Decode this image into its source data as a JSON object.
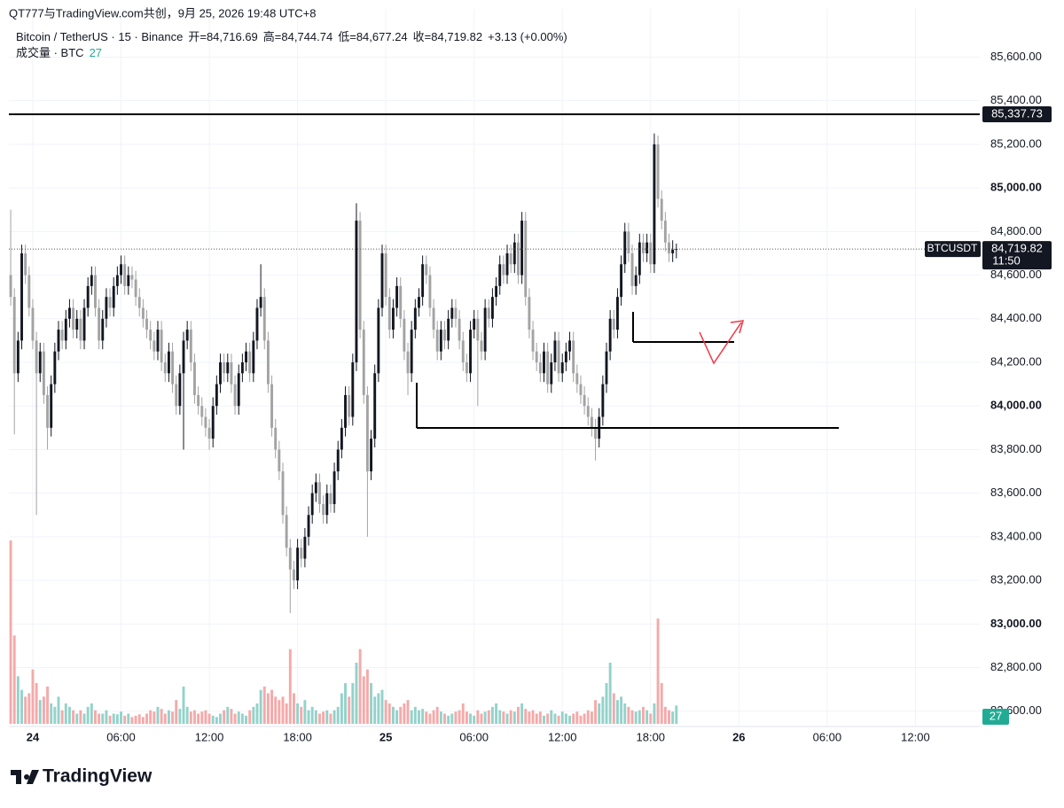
{
  "chart_data": {
    "type": "candlestick",
    "header": "QT777与TradingView.com共创，9月 25, 2026 19:48 UTC+8",
    "title": "Bitcoin / TetherUS · 15 · Binance",
    "legend_items": [
      "开=84,716.69",
      "高=84,744.74",
      "低=84,677.24",
      "收=84,719.82",
      "+3.13 (+0.00%)"
    ],
    "volume_title": "成交量 · BTC",
    "logo": "TradingView",
    "up_color": "#131722",
    "down_color": "#a3a3a3",
    "volume_up_color": "#93d2ca",
    "volume_down_color": "#f5a9a9",
    "ylim": [
      82530,
      85740
    ],
    "yticks": [
      {
        "value": 82600,
        "label": "82,600.00"
      },
      {
        "value": 82800,
        "label": "82,800.00"
      },
      {
        "value": 83000,
        "label": "83,000.00",
        "bold": true
      },
      {
        "value": 83200,
        "label": "83,200.00"
      },
      {
        "value": 83400,
        "label": "83,400.00"
      },
      {
        "value": 83600,
        "label": "83,600.00"
      },
      {
        "value": 83800,
        "label": "83,800.00"
      },
      {
        "value": 84000,
        "label": "84,000.00",
        "bold": true
      },
      {
        "value": 84200,
        "label": "84,200.00"
      },
      {
        "value": 84400,
        "label": "84,400.00"
      },
      {
        "value": 84600,
        "label": "84,600.00"
      },
      {
        "value": 84800,
        "label": "84,800.00"
      },
      {
        "value": 85000,
        "label": "85,000.00",
        "bold": true
      },
      {
        "value": 85200,
        "label": "85,200.00"
      },
      {
        "value": 85400,
        "label": "85,400.00"
      },
      {
        "value": 85600,
        "label": "85,600.00"
      }
    ],
    "xlim": [
      -0.5,
      263.5
    ],
    "xticks": [
      {
        "value": 6,
        "label": "24",
        "bold": true
      },
      {
        "value": 30,
        "label": "06:00"
      },
      {
        "value": 54,
        "label": "12:00"
      },
      {
        "value": 78,
        "label": "18:00"
      },
      {
        "value": 102,
        "label": "25",
        "bold": true
      },
      {
        "value": 126,
        "label": "06:00"
      },
      {
        "value": 150,
        "label": "12:00"
      },
      {
        "value": 174,
        "label": "18:00"
      },
      {
        "value": 198,
        "label": "26",
        "bold": true
      },
      {
        "value": 222,
        "label": "06:00"
      },
      {
        "value": 246,
        "label": "12:00"
      }
    ],
    "hline": {
      "value": 85337.73,
      "label": "85,337.73"
    },
    "last_price": {
      "symbol": "BTCUSDT",
      "label": "84,719.82",
      "countdown": "11:50"
    },
    "volume_ylim": [
      0,
      300
    ],
    "open": [
      84600,
      84500,
      84150,
      84300,
      84700,
      84600,
      84450,
      84300,
      84150,
      84250,
      84050,
      83900,
      84100,
      84250,
      84350,
      84300,
      84400,
      84450,
      84350,
      84400,
      84300,
      84450,
      84550,
      84600,
      84450,
      84300,
      84400,
      84500,
      84450,
      84550,
      84600,
      84650,
      84550,
      84600,
      84580,
      84500,
      84450,
      84400,
      84350,
      84300,
      84250,
      84350,
      84200,
      84150,
      84250,
      84100,
      84000,
      84150,
      84300,
      84350,
      84200,
      84050,
      84000,
      83950,
      83900,
      83850,
      84000,
      84100,
      84200,
      84150,
      84200,
      84100,
      84000,
      84150,
      84200,
      84250,
      84150,
      84300,
      84450,
      84500,
      84300,
      84100,
      83900,
      83800,
      83700,
      83500,
      83350,
      83250,
      83200,
      83350,
      83300,
      83400,
      83500,
      83600,
      83650,
      83550,
      83500,
      83600,
      83550,
      83700,
      83800,
      83900,
      84050,
      83950,
      84200,
      84850,
      84350,
      84050,
      83700,
      83850,
      84150,
      84450,
      84700,
      84500,
      84350,
      84450,
      84550,
      84400,
      84250,
      84150,
      84350,
      84450,
      84500,
      84650,
      84600,
      84450,
      84350,
      84250,
      84350,
      84300,
      84400,
      84450,
      84400,
      84300,
      84200,
      84150,
      84350,
      84400,
      84300,
      84250,
      84450,
      84400,
      84500,
      84550,
      84650,
      84600,
      84700,
      84650,
      84750,
      84600,
      84850,
      84500,
      84350,
      84250,
      84200,
      84150,
      84250,
      84100,
      84200,
      84300,
      84150,
      84200,
      84250,
      84300,
      84150,
      84100,
      84050,
      84000,
      83950,
      83900,
      83850,
      83950,
      84100,
      84250,
      84400,
      84350,
      84500,
      84650,
      84800,
      84700,
      84550,
      84600,
      84750,
      84700,
      84750,
      84650,
      85200,
      84950,
      84850,
      84750,
      84700,
      84716.69
    ],
    "high": [
      84900,
      84540,
      84340,
      84740,
      84740,
      84640,
      84490,
      84340,
      84290,
      84290,
      84090,
      84140,
      84290,
      84390,
      84390,
      84440,
      84490,
      84490,
      84440,
      84440,
      84490,
      84590,
      84640,
      84640,
      84490,
      84440,
      84540,
      84540,
      84590,
      84640,
      84690,
      84690,
      84640,
      84640,
      84620,
      84540,
      84490,
      84440,
      84390,
      84340,
      84390,
      84390,
      84240,
      84290,
      84290,
      84140,
      84190,
      84340,
      84390,
      84390,
      84240,
      84090,
      84040,
      83990,
      83940,
      84040,
      84140,
      84240,
      84240,
      84240,
      84240,
      84140,
      84190,
      84240,
      84290,
      84290,
      84340,
      84490,
      84650,
      84540,
      84340,
      84140,
      83940,
      83840,
      83740,
      83540,
      83390,
      83290,
      83390,
      83390,
      83440,
      83540,
      83640,
      83690,
      83690,
      83590,
      83640,
      83640,
      83740,
      83840,
      83940,
      84090,
      84090,
      84240,
      84930,
      84890,
      84390,
      84090,
      83890,
      84190,
      84490,
      84740,
      84740,
      84540,
      84490,
      84590,
      84590,
      84440,
      84290,
      84390,
      84490,
      84540,
      84690,
      84690,
      84640,
      84490,
      84390,
      84390,
      84390,
      84440,
      84490,
      84490,
      84440,
      84340,
      84240,
      84390,
      84440,
      84440,
      84340,
      84490,
      84490,
      84540,
      84590,
      84690,
      84690,
      84740,
      84740,
      84790,
      84790,
      84890,
      84890,
      84540,
      84390,
      84290,
      84240,
      84290,
      84290,
      84240,
      84340,
      84340,
      84240,
      84290,
      84340,
      84340,
      84190,
      84140,
      84090,
      84040,
      83990,
      83940,
      83990,
      84140,
      84290,
      84440,
      84440,
      84540,
      84690,
      84840,
      84840,
      84740,
      84640,
      84790,
      84790,
      84790,
      84790,
      85250,
      85240,
      84990,
      84890,
      84790,
      84760,
      84744.74
    ],
    "low": [
      84460,
      83870,
      84110,
      84260,
      84560,
      84410,
      84260,
      83500,
      84110,
      84010,
      83800,
      83860,
      84060,
      84210,
      84260,
      84260,
      84360,
      84310,
      84310,
      84260,
      84260,
      84410,
      84510,
      84410,
      84260,
      84260,
      84360,
      84410,
      84410,
      84510,
      84560,
      84510,
      84510,
      84540,
      84460,
      84410,
      84360,
      84310,
      84260,
      84210,
      84210,
      84160,
      84110,
      84110,
      84060,
      83960,
      83960,
      83800,
      84260,
      84160,
      84010,
      83960,
      83910,
      83860,
      83800,
      83810,
      83960,
      84060,
      84110,
      84110,
      84060,
      83960,
      83960,
      84110,
      84160,
      84110,
      84110,
      84260,
      84410,
      84260,
      84060,
      83860,
      83760,
      83660,
      83460,
      83310,
      83050,
      83160,
      83160,
      83260,
      83260,
      83360,
      83460,
      83560,
      83510,
      83460,
      83460,
      83510,
      83510,
      83660,
      83760,
      83860,
      83910,
      83910,
      84160,
      84310,
      84010,
      83400,
      83660,
      83810,
      84110,
      84410,
      84460,
      84310,
      84310,
      84410,
      84360,
      84210,
      84050,
      84110,
      84310,
      84410,
      84460,
      84560,
      84410,
      84310,
      84210,
      84210,
      84260,
      84260,
      84360,
      84360,
      84260,
      84160,
      84110,
      84110,
      84310,
      84000,
      84210,
      84210,
      84360,
      84360,
      84460,
      84510,
      84560,
      84560,
      84610,
      84610,
      84560,
      84560,
      84460,
      84310,
      84210,
      84160,
      84110,
      84110,
      84060,
      84060,
      84160,
      84110,
      84110,
      84160,
      84210,
      84110,
      84060,
      84010,
      83960,
      83910,
      83860,
      83750,
      83810,
      83910,
      84060,
      84210,
      84310,
      84310,
      84460,
      84610,
      84660,
      84510,
      84510,
      84560,
      84660,
      84660,
      84610,
      84610,
      84910,
      84810,
      84710,
      84660,
      84660,
      84677.24
    ],
    "close": [
      84500,
      84150,
      84300,
      84700,
      84600,
      84450,
      84300,
      84150,
      84250,
      84050,
      83900,
      84100,
      84250,
      84350,
      84300,
      84400,
      84450,
      84350,
      84400,
      84300,
      84450,
      84550,
      84600,
      84450,
      84300,
      84400,
      84500,
      84450,
      84550,
      84600,
      84650,
      84550,
      84600,
      84580,
      84500,
      84450,
      84400,
      84350,
      84300,
      84250,
      84350,
      84200,
      84150,
      84250,
      84100,
      84000,
      84150,
      84300,
      84350,
      84200,
      84050,
      84000,
      83950,
      83900,
      83850,
      84000,
      84100,
      84200,
      84150,
      84200,
      84100,
      84000,
      84150,
      84200,
      84250,
      84150,
      84300,
      84450,
      84500,
      84300,
      84100,
      83900,
      83800,
      83700,
      83500,
      83350,
      83250,
      83200,
      83350,
      83300,
      83400,
      83500,
      83600,
      83650,
      83550,
      83500,
      83600,
      83550,
      83700,
      83800,
      83900,
      84050,
      83950,
      84200,
      84850,
      84350,
      84050,
      83700,
      83850,
      84150,
      84450,
      84700,
      84500,
      84350,
      84450,
      84550,
      84400,
      84250,
      84150,
      84350,
      84450,
      84500,
      84650,
      84600,
      84450,
      84350,
      84250,
      84350,
      84300,
      84400,
      84450,
      84400,
      84300,
      84200,
      84150,
      84350,
      84400,
      84300,
      84250,
      84450,
      84400,
      84500,
      84550,
      84650,
      84600,
      84700,
      84650,
      84750,
      84600,
      84850,
      84500,
      84350,
      84250,
      84200,
      84150,
      84250,
      84100,
      84200,
      84300,
      84150,
      84200,
      84250,
      84300,
      84150,
      84100,
      84050,
      84000,
      83950,
      83900,
      83850,
      83950,
      84100,
      84250,
      84400,
      84350,
      84500,
      84650,
      84800,
      84700,
      84550,
      84600,
      84750,
      84700,
      84750,
      84650,
      85200,
      84950,
      84850,
      84750,
      84700,
      84716.69,
      84719.82
    ],
    "volume": [
      270,
      130,
      70,
      50,
      40,
      45,
      80,
      60,
      35,
      40,
      55,
      30,
      25,
      40,
      20,
      30,
      25,
      20,
      15,
      20,
      15,
      25,
      30,
      20,
      15,
      15,
      20,
      12,
      15,
      14,
      18,
      12,
      15,
      10,
      12,
      14,
      10,
      15,
      20,
      18,
      25,
      22,
      15,
      20,
      18,
      35,
      22,
      55,
      25,
      18,
      20,
      15,
      18,
      20,
      15,
      12,
      10,
      15,
      20,
      25,
      22,
      15,
      18,
      15,
      12,
      20,
      25,
      30,
      50,
      55,
      45,
      50,
      40,
      35,
      40,
      30,
      110,
      45,
      30,
      25,
      35,
      20,
      25,
      20,
      15,
      18,
      20,
      15,
      20,
      25,
      45,
      60,
      40,
      60,
      90,
      110,
      70,
      80,
      60,
      40,
      45,
      50,
      35,
      30,
      25,
      20,
      25,
      30,
      35,
      20,
      25,
      20,
      22,
      18,
      15,
      20,
      25,
      18,
      15,
      12,
      15,
      18,
      20,
      30,
      18,
      15,
      12,
      20,
      15,
      18,
      20,
      25,
      30,
      20,
      18,
      15,
      20,
      18,
      25,
      30,
      22,
      18,
      20,
      15,
      18,
      12,
      15,
      20,
      15,
      12,
      18,
      15,
      12,
      15,
      18,
      12,
      15,
      20,
      18,
      35,
      30,
      40,
      60,
      90,
      45,
      35,
      40,
      30,
      25,
      20,
      18,
      20,
      25,
      20,
      15,
      30,
      155,
      60,
      25,
      20,
      18,
      27
    ]
  }
}
